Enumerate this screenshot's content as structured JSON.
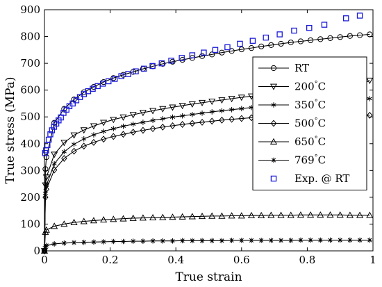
{
  "chart_data": {
    "type": "line",
    "xlabel": "True strain",
    "ylabel": "True stress (MPa)",
    "xlim": [
      0,
      1
    ],
    "ylim": [
      0,
      900
    ],
    "x_ticks": [
      0,
      0.2,
      0.4,
      0.6,
      0.8,
      1
    ],
    "x_tick_labels": [
      "0",
      "0.2",
      "0.4",
      "0.6",
      "0.8",
      "1"
    ],
    "y_ticks": [
      0,
      100,
      200,
      300,
      400,
      500,
      600,
      700,
      800,
      900
    ],
    "y_tick_labels": [
      "0",
      "100",
      "200",
      "300",
      "400",
      "500",
      "600",
      "700",
      "800",
      "900"
    ],
    "grid": false,
    "legend_position": "right",
    "series": [
      {
        "name": "RT",
        "marker": "circle",
        "line": true,
        "color": "#000000",
        "x": [
          0,
          0.003,
          0.006,
          0.03,
          0.06,
          0.09,
          0.12,
          0.15,
          0.18,
          0.21,
          0.24,
          0.27,
          0.3,
          0.33,
          0.36,
          0.39,
          0.42,
          0.45,
          0.48,
          0.51,
          0.54,
          0.57,
          0.6,
          0.63,
          0.66,
          0.69,
          0.72,
          0.75,
          0.78,
          0.81,
          0.84,
          0.87,
          0.9,
          0.93,
          0.96,
          0.99
        ],
        "y": [
          0,
          305,
          350,
          478,
          530,
          565,
          592,
          612,
          630,
          645,
          657,
          668,
          679,
          689,
          698,
          706,
          713,
          720,
          727,
          733,
          740,
          746,
          752,
          757,
          763,
          768,
          773,
          778,
          782,
          786,
          790,
          794,
          798,
          802,
          805,
          808
        ]
      },
      {
        "name": "200°C",
        "marker": "triangle-down",
        "line": true,
        "color": "#000000",
        "x": [
          0,
          0.003,
          0.006,
          0.03,
          0.06,
          0.09,
          0.12,
          0.15,
          0.18,
          0.21,
          0.24,
          0.27,
          0.3,
          0.33,
          0.36,
          0.39,
          0.42,
          0.45,
          0.48,
          0.51,
          0.54,
          0.57,
          0.6,
          0.63,
          0.66,
          0.69,
          0.72,
          0.75,
          0.78,
          0.81,
          0.84,
          0.87,
          0.9,
          0.93,
          0.96,
          0.99
        ],
        "y": [
          0,
          245,
          275,
          360,
          404,
          432,
          451,
          466,
          479,
          490,
          499,
          508,
          516,
          523,
          530,
          536,
          542,
          548,
          553,
          558,
          563,
          568,
          573,
          577,
          581,
          585,
          589,
          593,
          597,
          600,
          604,
          607,
          611,
          614,
          617,
          636
        ]
      },
      {
        "name": "350°C",
        "marker": "star6",
        "line": true,
        "color": "#000000",
        "x": [
          0,
          0.003,
          0.006,
          0.03,
          0.06,
          0.09,
          0.12,
          0.15,
          0.18,
          0.21,
          0.24,
          0.27,
          0.3,
          0.33,
          0.36,
          0.39,
          0.42,
          0.45,
          0.48,
          0.51,
          0.54,
          0.57,
          0.6,
          0.63,
          0.66,
          0.69,
          0.72,
          0.75,
          0.78,
          0.81,
          0.84,
          0.87,
          0.9,
          0.93,
          0.96,
          0.99
        ],
        "y": [
          0,
          215,
          245,
          325,
          370,
          398,
          418,
          433,
          446,
          456,
          465,
          473,
          480,
          487,
          493,
          499,
          504,
          509,
          514,
          519,
          523,
          527,
          531,
          535,
          539,
          542,
          545,
          548,
          551,
          554,
          557,
          560,
          562,
          565,
          567,
          568
        ]
      },
      {
        "name": "500°C",
        "marker": "diamond",
        "line": true,
        "color": "#000000",
        "x": [
          0,
          0.003,
          0.006,
          0.03,
          0.06,
          0.09,
          0.12,
          0.15,
          0.18,
          0.21,
          0.24,
          0.27,
          0.3,
          0.33,
          0.36,
          0.39,
          0.42,
          0.45,
          0.48,
          0.51,
          0.54,
          0.57,
          0.6,
          0.63,
          0.66,
          0.69,
          0.72,
          0.75,
          0.78,
          0.81,
          0.84,
          0.87,
          0.9,
          0.93,
          0.96,
          0.99
        ],
        "y": [
          0,
          200,
          230,
          302,
          345,
          372,
          391,
          405,
          417,
          427,
          435,
          443,
          450,
          456,
          462,
          467,
          472,
          476,
          480,
          484,
          488,
          491,
          494,
          497,
          499,
          501,
          503,
          504,
          505,
          506,
          506,
          506,
          506,
          506,
          506,
          506
        ]
      },
      {
        "name": "650°C",
        "marker": "triangle-up",
        "line": true,
        "color": "#000000",
        "x": [
          0,
          0.003,
          0.006,
          0.03,
          0.06,
          0.09,
          0.12,
          0.15,
          0.18,
          0.21,
          0.24,
          0.27,
          0.3,
          0.33,
          0.36,
          0.39,
          0.42,
          0.45,
          0.48,
          0.51,
          0.54,
          0.57,
          0.6,
          0.63,
          0.66,
          0.69,
          0.72,
          0.75,
          0.78,
          0.81,
          0.84,
          0.87,
          0.9,
          0.93,
          0.96,
          0.99
        ],
        "y": [
          0,
          70,
          78,
          92,
          100,
          106,
          110,
          113,
          116,
          118,
          120,
          122,
          123,
          124,
          125,
          126,
          127,
          128,
          129,
          130,
          130,
          131,
          131,
          132,
          132,
          133,
          133,
          133,
          134,
          134,
          134,
          134,
          134,
          133,
          133,
          133
        ]
      },
      {
        "name": "769°C",
        "marker": "star8",
        "line": true,
        "color": "#000000",
        "x": [
          0,
          0.003,
          0.006,
          0.03,
          0.06,
          0.09,
          0.12,
          0.15,
          0.18,
          0.21,
          0.24,
          0.27,
          0.3,
          0.33,
          0.36,
          0.39,
          0.42,
          0.45,
          0.48,
          0.51,
          0.54,
          0.57,
          0.6,
          0.63,
          0.66,
          0.69,
          0.72,
          0.75,
          0.78,
          0.81,
          0.84,
          0.87,
          0.9,
          0.93,
          0.96,
          0.99
        ],
        "y": [
          0,
          16,
          20,
          26,
          29,
          31,
          32,
          33,
          34,
          35,
          35,
          36,
          36,
          37,
          37,
          37,
          38,
          38,
          38,
          38,
          38,
          39,
          39,
          39,
          39,
          39,
          39,
          39,
          40,
          40,
          40,
          40,
          40,
          40,
          40,
          40
        ]
      },
      {
        "name": "Exp. @ RT",
        "marker": "square",
        "line": false,
        "color": "#1a1adb",
        "x": [
          0.002,
          0.005,
          0.009,
          0.013,
          0.018,
          0.023,
          0.029,
          0.036,
          0.043,
          0.05,
          0.058,
          0.067,
          0.076,
          0.086,
          0.097,
          0.108,
          0.12,
          0.133,
          0.147,
          0.162,
          0.178,
          0.195,
          0.214,
          0.234,
          0.255,
          0.278,
          0.303,
          0.329,
          0.357,
          0.386,
          0.418,
          0.45,
          0.485,
          0.52,
          0.557,
          0.595,
          0.634,
          0.674,
          0.716,
          0.76,
          0.806,
          0.852,
          0.918,
          0.96
        ],
        "y": [
          365,
          375,
          395,
          415,
          435,
          450,
          463,
          475,
          487,
          498,
          515,
          527,
          540,
          550,
          562,
          574,
          585,
          596,
          605,
          615,
          624,
          633,
          642,
          652,
          660,
          670,
          680,
          690,
          700,
          710,
          720,
          730,
          740,
          750,
          760,
          773,
          784,
          796,
          808,
          822,
          832,
          844,
          868,
          878
        ]
      }
    ]
  }
}
